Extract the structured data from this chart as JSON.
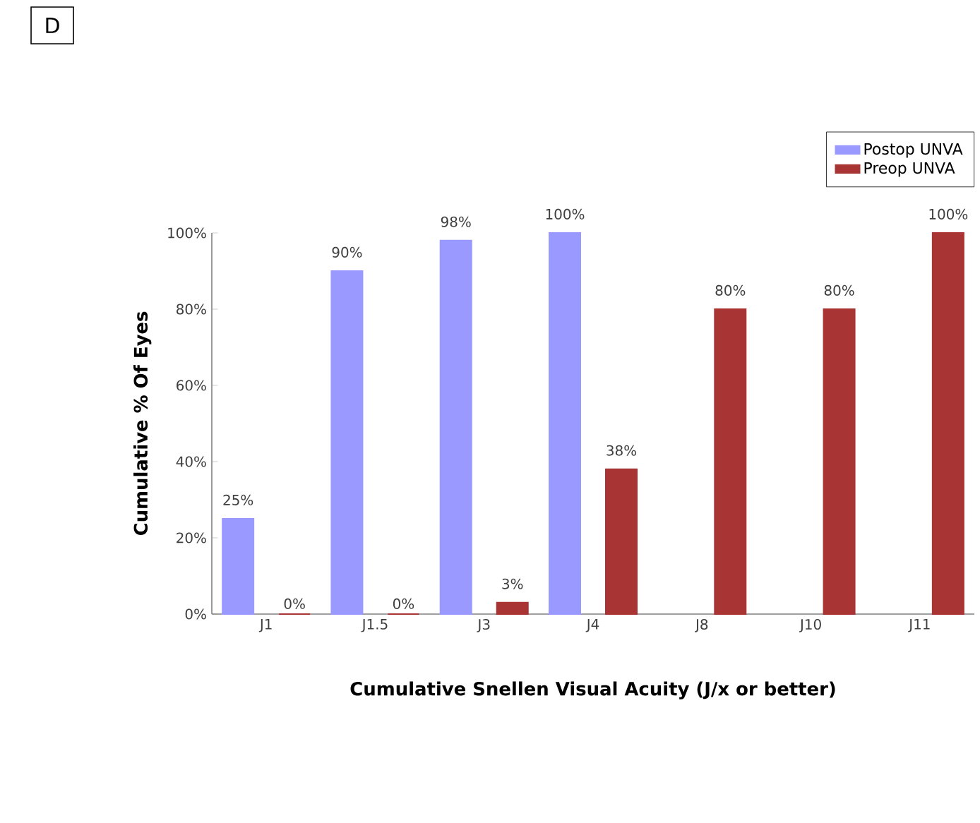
{
  "chart_data": {
    "type": "bar",
    "categories": [
      "J1",
      "J1.5",
      "J3",
      "J4",
      "J8",
      "J10",
      "J11"
    ],
    "series": [
      {
        "name": "Postop UNVA",
        "color": "#9999ff",
        "values": [
          25,
          90,
          98,
          100,
          null,
          null,
          null
        ],
        "value_labels": [
          "25%",
          "90%",
          "98%",
          "100%",
          null,
          null,
          null
        ]
      },
      {
        "name": "Preop UNVA",
        "color": "#a83434",
        "values": [
          0,
          0,
          3,
          38,
          80,
          80,
          100
        ],
        "value_labels": [
          "0%",
          "0%",
          "3%",
          "38%",
          "80%",
          "80%",
          "100%"
        ]
      }
    ],
    "xlabel": "Cumulative Snellen Visual Acuity (J/x or better)",
    "ylabel": "Cumulative % Of Eyes",
    "ylim": [
      0,
      100
    ],
    "yticks": [
      {
        "value": 0,
        "label": "0%"
      },
      {
        "value": 20,
        "label": "20%"
      },
      {
        "value": 40,
        "label": "40%"
      },
      {
        "value": 60,
        "label": "60%"
      },
      {
        "value": 80,
        "label": "80%"
      },
      {
        "value": 100,
        "label": "100%"
      }
    ],
    "legend": "top right",
    "grid": false,
    "annotations": [
      "D"
    ]
  }
}
